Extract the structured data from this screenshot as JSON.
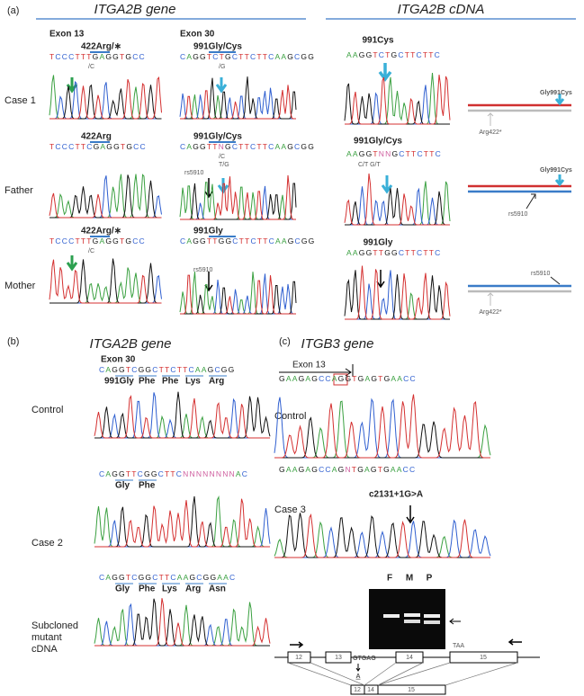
{
  "panel_a": {
    "label": "(a)",
    "gene_title": "ITGA2B gene",
    "cdna_title": "ITGA2B cDNA",
    "exon_13": "Exon 13",
    "exon_30": "Exon 30",
    "rows": [
      {
        "name": "Case 1",
        "exon13_mutation": "422Arg/∗",
        "exon13_sequence": "TCCCTTTGAGGTGCC",
        "exon13_alt": "/C",
        "exon30_mutation": "991Gly/Cys",
        "exon30_sequence": "CAGGTCTGCTTCTTCAAGCGG",
        "exon30_alts": [
          "/G"
        ],
        "cdna_mutation": "991Cys",
        "cdna_sequence": "AAGGTCTGCTTCTTC",
        "allele_labels": [
          "Gly991Cys",
          "Arg422*"
        ]
      },
      {
        "name": "Father",
        "exon13_mutation": "422Arg",
        "exon13_sequence": "TCCCTTCGAGGTGCC",
        "exon30_mutation": "991Gly/Cys",
        "exon30_sequence": "CAGGTTNGCTTCTTCAAGCGG",
        "exon30_alts": [
          "/C",
          "T/G",
          "rs5910"
        ],
        "cdna_mutation": "991Gly/Cys",
        "cdna_sequence": "AAGGTNNGCTTCTTC",
        "cdna_alt": "C/T G/T",
        "allele_labels": [
          "Gly991Cys",
          "rs5910"
        ]
      },
      {
        "name": "Mother",
        "exon13_mutation": "422Arg/∗",
        "exon13_sequence": "TCCCTTTGAGGTGCC",
        "exon13_alt": "/C",
        "exon30_mutation": "991Gly",
        "exon30_sequence": "CAGGTTGGCTTCTTCAAGCGG",
        "exon30_alts": [
          "rs5910"
        ],
        "cdna_mutation": "991Gly",
        "cdna_sequence": "AAGGTTGGCTTCTTC",
        "allele_labels": [
          "rs5910",
          "Arg422*"
        ]
      }
    ]
  },
  "panel_b": {
    "label": "(b)",
    "title": "ITGA2B gene",
    "exon": "Exon 30",
    "rows": [
      {
        "name": [
          "Control"
        ],
        "sequence": "CAGGTCGGCTTCTTCAAGCGG",
        "amino_acids": [
          "991Gly",
          "Phe",
          "Phe",
          "Lys",
          "Arg"
        ]
      },
      {
        "name": [
          "Case 2"
        ],
        "sequence": "CAGGTTCGGCTTCNNNNNNNNAC",
        "amino_acids": [
          "Gly",
          "Phe"
        ]
      },
      {
        "name": [
          "Subcloned",
          "mutant",
          "cDNA"
        ],
        "sequence": "CAGGTCGGCTTCAAGCGGAAC",
        "amino_acids": [
          "Gly",
          "Phe",
          "Lys",
          "Arg",
          "Asn"
        ]
      }
    ]
  },
  "panel_c": {
    "label": "(c)",
    "title": "ITGB3 gene",
    "exon": "Exon 13",
    "rows": [
      {
        "name": "Control",
        "sequence": "GAAGAGCCAGGTGAGTGAACC"
      },
      {
        "name": "Case 3",
        "sequence": "GAAGAGCCAGNTGAGTGAACC",
        "mutation": "c2131+1G>A"
      }
    ],
    "gel_lanes": [
      "F",
      "M",
      "P"
    ],
    "gene_diagram": {
      "exons": [
        "12",
        "13",
        "14",
        "15"
      ],
      "splice_site": "GTGAG",
      "substitution": "A",
      "stop": "TAA",
      "transcript_exons": [
        "12",
        "14",
        "15"
      ]
    }
  }
}
